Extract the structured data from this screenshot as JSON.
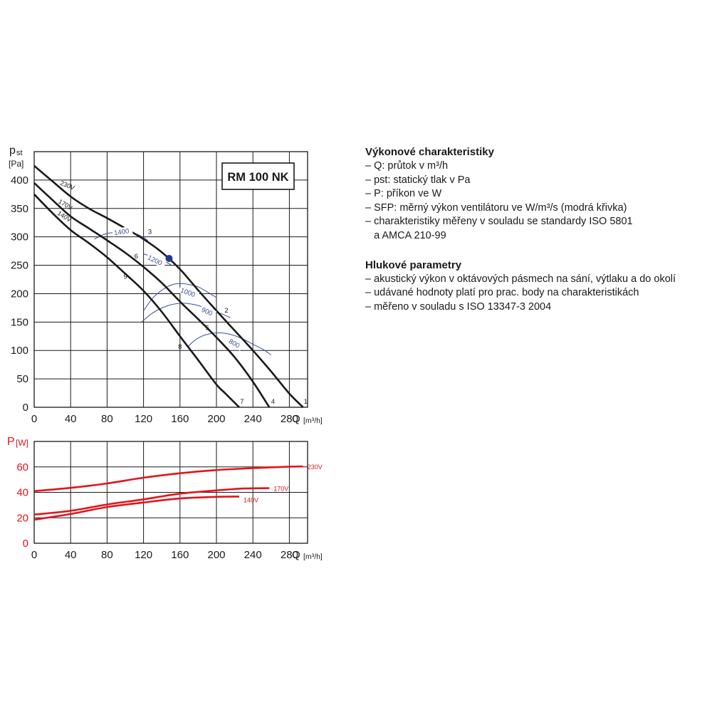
{
  "info": {
    "perf_title": "Výkonové charakteristiky",
    "perf_lines": [
      "– Q: průtok v m³/h",
      "– pst: statický tlak v Pa",
      "– P: příkon ve W",
      "– SFP: měrný výkon ventilátoru ve W/m³/s (modrá křivka)",
      "– charakteristiky měřeny v souladu se standardy ISO 5801",
      "   a AMCA 210-99"
    ],
    "noise_title": "Hlukové parametry",
    "noise_lines": [
      "– akustický výkon v oktávových pásmech na sání, výtlaku a do okolí",
      "– udávané hodnoty platí pro prac. body na charakteristikách",
      "– měřeno v souladu s ISO 13347-3 2004"
    ]
  },
  "chart_data": [
    {
      "type": "line",
      "model_label": "RM 100 NK",
      "ylabel": "pst",
      "yunit": "[Pa]",
      "xlabel": "Q",
      "xunit": "[m³/h]",
      "xlim": [
        0,
        300
      ],
      "ylim": [
        0,
        450
      ],
      "xticks": [
        0,
        40,
        80,
        120,
        160,
        200,
        240,
        280
      ],
      "yticks": [
        0,
        50,
        100,
        150,
        200,
        250,
        300,
        350,
        400
      ],
      "grid": true,
      "series": [
        {
          "name": "230V",
          "color": "#1a1a1a",
          "points": [
            [
              0,
              425
            ],
            [
              20,
              398
            ],
            [
              40,
              371
            ],
            [
              60,
              350
            ],
            [
              80,
              333
            ],
            [
              100,
              315
            ],
            [
              120,
              296
            ],
            [
              140,
              273
            ],
            [
              160,
              243
            ],
            [
              180,
              206
            ],
            [
              200,
              170
            ],
            [
              220,
              135
            ],
            [
              240,
              100
            ],
            [
              260,
              63
            ],
            [
              280,
              24
            ],
            [
              295,
              0
            ]
          ],
          "end_label": "1"
        },
        {
          "name": "170V",
          "color": "#1a1a1a",
          "points": [
            [
              0,
              395
            ],
            [
              20,
              365
            ],
            [
              40,
              336
            ],
            [
              60,
              315
            ],
            [
              80,
              294
            ],
            [
              100,
              272
            ],
            [
              120,
              247
            ],
            [
              140,
              219
            ],
            [
              160,
              186
            ],
            [
              180,
              155
            ],
            [
              200,
              123
            ],
            [
              220,
              88
            ],
            [
              240,
              45
            ],
            [
              258,
              0
            ]
          ],
          "end_label": "4"
        },
        {
          "name": "140V",
          "color": "#1a1a1a",
          "points": [
            [
              0,
              375
            ],
            [
              20,
              342
            ],
            [
              40,
              312
            ],
            [
              60,
              289
            ],
            [
              80,
              264
            ],
            [
              100,
              235
            ],
            [
              120,
              205
            ],
            [
              140,
              168
            ],
            [
              160,
              125
            ],
            [
              180,
              83
            ],
            [
              200,
              40
            ],
            [
              210,
              24
            ],
            [
              225,
              0
            ]
          ],
          "end_label": "7"
        }
      ],
      "sfp_series": [
        {
          "name": "1400",
          "points": [
            [
              66,
              296
            ],
            [
              80,
              306
            ],
            [
              100,
              308
            ],
            [
              110,
              306
            ],
            [
              120,
              299
            ],
            [
              125,
              293
            ]
          ]
        },
        {
          "name": "1200",
          "points": [
            [
              120,
              270
            ],
            [
              128,
              266
            ],
            [
              136,
              262
            ],
            [
              143,
              257
            ],
            [
              150,
              251
            ]
          ]
        },
        {
          "name": "1000",
          "points": [
            [
              120,
              170
            ],
            [
              130,
              192
            ],
            [
              140,
              206
            ],
            [
              150,
              215
            ],
            [
              160,
              218
            ],
            [
              170,
              216
            ],
            [
              180,
              212
            ],
            [
              190,
              203
            ],
            [
              200,
              193
            ]
          ]
        },
        {
          "name": "900",
          "points": [
            [
              118,
              150
            ],
            [
              130,
              166
            ],
            [
              145,
              178
            ],
            [
              160,
              183
            ],
            [
              175,
              181
            ],
            [
              190,
              174
            ],
            [
              205,
              165
            ],
            [
              215,
              158
            ]
          ]
        },
        {
          "name": "800",
          "points": [
            [
              168,
              106
            ],
            [
              180,
              122
            ],
            [
              195,
              130
            ],
            [
              210,
              130
            ],
            [
              225,
              123
            ],
            [
              240,
              111
            ],
            [
              252,
              101
            ],
            [
              260,
              92
            ]
          ]
        }
      ],
      "sfp_color": "#3b4e96",
      "point_labels": [
        {
          "label": "1",
          "q": 298,
          "p": 6
        },
        {
          "label": "2",
          "q": 211,
          "p": 167
        },
        {
          "label": "3",
          "q": 127,
          "p": 305
        },
        {
          "label": "4",
          "q": 262,
          "p": 6
        },
        {
          "label": "5",
          "q": 190,
          "p": 136
        },
        {
          "label": "6",
          "q": 112,
          "p": 262
        },
        {
          "label": "7",
          "q": 228,
          "p": 6
        },
        {
          "label": "8",
          "q": 160,
          "p": 103
        },
        {
          "label": "9",
          "q": 100,
          "p": 226
        }
      ],
      "marker": {
        "q": 148,
        "p": 262,
        "color": "#1f3a8c"
      }
    },
    {
      "type": "line",
      "ylabel": "P",
      "yunit": "[W]",
      "xlabel": "Q",
      "xunit": "[m³/h]",
      "xlim": [
        0,
        300
      ],
      "ylim": [
        0,
        80
      ],
      "xticks": [
        0,
        40,
        80,
        120,
        160,
        200,
        240,
        280
      ],
      "yticks": [
        0,
        20,
        40,
        60
      ],
      "grid": true,
      "color": "#e3141b",
      "series": [
        {
          "name": "230V",
          "points": [
            [
              0,
              41
            ],
            [
              40,
              43.5
            ],
            [
              80,
              47
            ],
            [
              120,
              51.5
            ],
            [
              160,
              55
            ],
            [
              200,
              57.5
            ],
            [
              240,
              59
            ],
            [
              280,
              60.2
            ],
            [
              295,
              60.3
            ]
          ]
        },
        {
          "name": "170V",
          "points": [
            [
              0,
              22.5
            ],
            [
              40,
              25.5
            ],
            [
              80,
              30.5
            ],
            [
              120,
              34.5
            ],
            [
              160,
              39
            ],
            [
              200,
              41.5
            ],
            [
              230,
              43
            ],
            [
              258,
              43.3
            ]
          ]
        },
        {
          "name": "140V",
          "points": [
            [
              0,
              18.5
            ],
            [
              40,
              23
            ],
            [
              80,
              28.5
            ],
            [
              120,
              32
            ],
            [
              160,
              35.2
            ],
            [
              200,
              36.5
            ],
            [
              225,
              36.7
            ]
          ]
        }
      ]
    }
  ]
}
